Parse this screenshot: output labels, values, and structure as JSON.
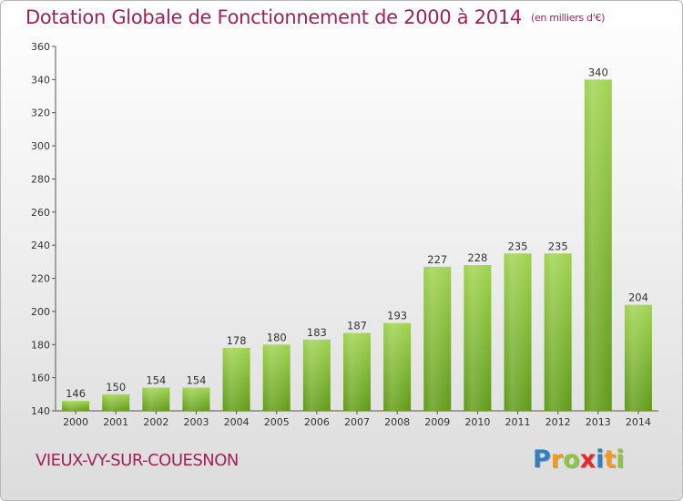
{
  "header": {
    "title": "Dotation Globale de Fonctionnement de 2000 à 2014",
    "unit": "(en milliers d'€)"
  },
  "footer": {
    "commune": "VIEUX-VY-SUR-COUESNON",
    "logo_letters": [
      "P",
      "r",
      "o",
      "x",
      "i",
      "t",
      "i"
    ],
    "logo_colors": [
      "#2e7fc4",
      "#f39a1d",
      "#8cc63f",
      "#e8262b",
      "#2e7fc4",
      "#f39a1d",
      "#8cc63f"
    ]
  },
  "chart_data": {
    "type": "bar",
    "title": "Dotation Globale de Fonctionnement de 2000 à 2014",
    "subtitle": "(en milliers d'€)",
    "categories": [
      "2000",
      "2001",
      "2002",
      "2003",
      "2004",
      "2005",
      "2006",
      "2007",
      "2008",
      "2009",
      "2010",
      "2011",
      "2012",
      "2013",
      "2014"
    ],
    "values": [
      146,
      150,
      154,
      154,
      178,
      180,
      183,
      187,
      193,
      227,
      228,
      235,
      235,
      340,
      204
    ],
    "ylim": [
      140,
      360
    ],
    "yticks": [
      140,
      160,
      180,
      200,
      220,
      240,
      260,
      280,
      300,
      320,
      340,
      360
    ],
    "xlabel": "",
    "ylabel": "",
    "grid": false,
    "bar_color": "#8cc63f"
  }
}
